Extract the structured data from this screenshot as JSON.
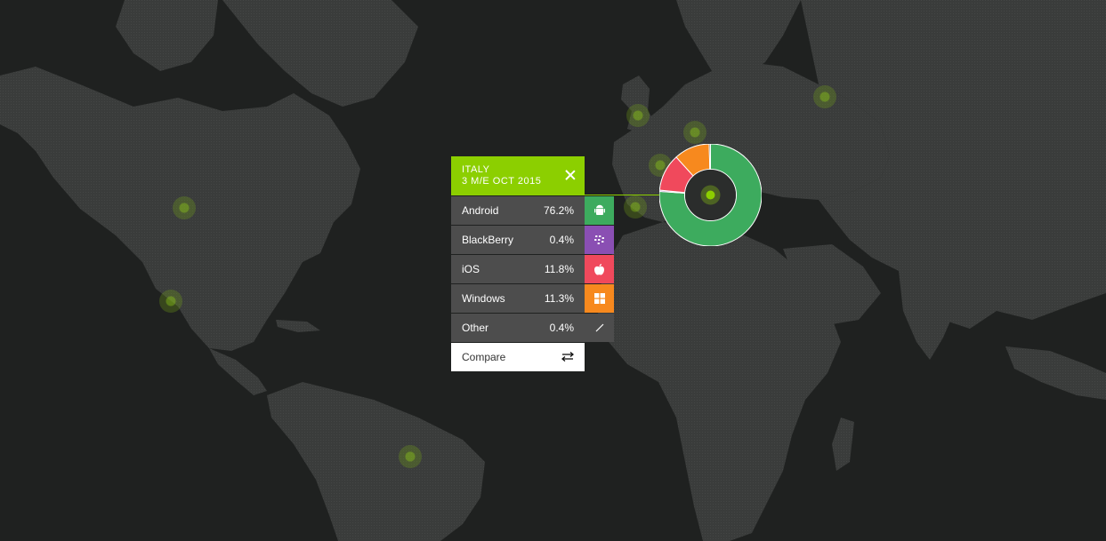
{
  "panel": {
    "country": "ITALY",
    "period": "3 M/E OCT 2015",
    "rows": [
      {
        "label": "Android",
        "value": "76.2%",
        "color": "#3dab5e",
        "icon": "android-icon",
        "glyph": "🤖"
      },
      {
        "label": "BlackBerry",
        "value": "0.4%",
        "color": "#8a4fb3",
        "icon": "blackberry-icon",
        "glyph": "⁙"
      },
      {
        "label": "iOS",
        "value": "11.8%",
        "color": "#f0495c",
        "icon": "apple-icon",
        "glyph": ""
      },
      {
        "label": "Windows",
        "value": "11.3%",
        "color": "#f7891e",
        "icon": "windows-icon",
        "glyph": "⊞"
      },
      {
        "label": "Other",
        "value": "0.4%",
        "color": "#4d4d4d",
        "icon": "other-icon",
        "glyph": "∕"
      }
    ],
    "compare_label": "Compare",
    "compare_icon": "swap-arrows-icon"
  },
  "chart_data": {
    "type": "pie",
    "categories": [
      "Android",
      "BlackBerry",
      "iOS",
      "Windows",
      "Other"
    ],
    "values": [
      76.2,
      0.4,
      11.8,
      11.3,
      0.4
    ],
    "colors": [
      "#3dab5e",
      "#8a4fb3",
      "#f0495c",
      "#f7891e",
      "#4d4d4d"
    ]
  },
  "colors": {
    "accent": "#8ccf00",
    "background": "#1f2120",
    "land": "#3b3d3c"
  }
}
